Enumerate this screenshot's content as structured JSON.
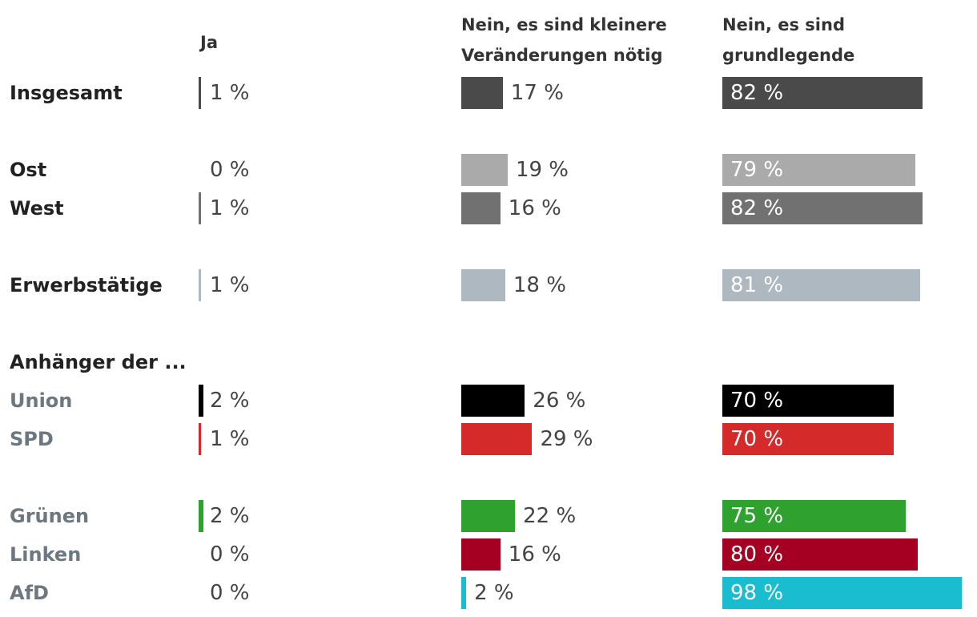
{
  "chart_data": {
    "type": "bar",
    "orientation": "horizontal",
    "columns": [
      {
        "label": "Ja"
      },
      {
        "label": "Nein, es sind kleinere\nVeränderungen nötig"
      },
      {
        "label": "Nein, es sind grundlegende\nReformen nötig"
      }
    ],
    "rows": [
      {
        "label": "Insgesamt",
        "style": "main",
        "color": "#4a4a4a",
        "values": [
          1,
          17,
          82
        ],
        "labels": [
          "1 %",
          "17 %",
          "82 %"
        ]
      },
      {
        "label": "Ost",
        "style": "main",
        "color": "#aaaaaa",
        "values": [
          0,
          19,
          79
        ],
        "labels": [
          "0 %",
          "19 %",
          "79 %"
        ]
      },
      {
        "label": "West",
        "style": "main",
        "color": "#717171",
        "values": [
          1,
          16,
          82
        ],
        "labels": [
          "1 %",
          "16 %",
          "82 %"
        ]
      },
      {
        "label": "Erwerbstätige",
        "style": "main",
        "color": "#adb8c1",
        "values": [
          1,
          18,
          81
        ],
        "labels": [
          "1 %",
          "18 %",
          "81 %"
        ]
      },
      {
        "label": "Anhänger der ...",
        "style": "main",
        "heading": true
      },
      {
        "label": "Union",
        "style": "party",
        "color": "#000000",
        "values": [
          2,
          26,
          70
        ],
        "labels": [
          "2 %",
          "26 %",
          "70 %"
        ]
      },
      {
        "label": "SPD",
        "style": "party",
        "color": "#d42a29",
        "values": [
          1,
          29,
          70
        ],
        "labels": [
          "1 %",
          "29 %",
          "70 %"
        ]
      },
      {
        "label": "Grünen",
        "style": "party",
        "color": "#2ea12e",
        "values": [
          2,
          22,
          75
        ],
        "labels": [
          "2 %",
          "22 %",
          "75 %"
        ]
      },
      {
        "label": "Linken",
        "style": "party",
        "color": "#a50021",
        "values": [
          0,
          16,
          80
        ],
        "labels": [
          "0 %",
          "16 %",
          "80 %"
        ]
      },
      {
        "label": "AfD",
        "style": "party",
        "color": "#1abdd0",
        "values": [
          0,
          2,
          98
        ],
        "labels": [
          "0 %",
          "2 %",
          "98 %"
        ]
      }
    ],
    "value_label_color_outside": "#444444",
    "value_label_color_inside": "#ffffff"
  }
}
